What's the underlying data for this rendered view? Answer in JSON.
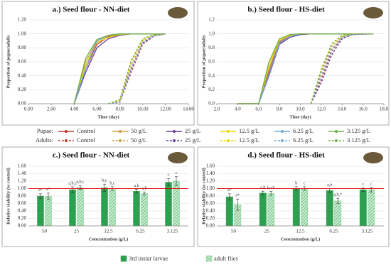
{
  "chart_data": [
    {
      "type": "line",
      "title": "a.) Seed flour - NN-diet",
      "xlabel": "Time (day)",
      "ylabel": "Proportion of pupae/adults",
      "x": [
        4,
        5,
        6,
        7,
        8,
        9,
        10,
        11,
        12
      ],
      "xlim": [
        0,
        14
      ],
      "xticks": [
        {
          "value": 0,
          "label": "0.00"
        },
        {
          "value": 2,
          "label": "2.00"
        },
        {
          "value": 4,
          "label": "4.00"
        },
        {
          "value": 6,
          "label": "6.00"
        },
        {
          "value": 8,
          "label": "8.00"
        },
        {
          "value": 10,
          "label": "10.00"
        },
        {
          "value": 12,
          "label": "12.00"
        },
        {
          "value": 14,
          "label": "14.00"
        }
      ],
      "ylim": [
        0,
        1.2
      ],
      "yticks": [
        {
          "value": 0,
          "label": "0.00"
        },
        {
          "value": 0.2,
          "label": "0.20"
        },
        {
          "value": 0.4,
          "label": "0.40"
        },
        {
          "value": 0.6,
          "label": "0.60"
        },
        {
          "value": 0.8,
          "label": "0.80"
        },
        {
          "value": 1,
          "label": "1.00"
        },
        {
          "value": 1.2,
          "label": "1.20"
        }
      ],
      "series": [
        {
          "name": "Control",
          "color": "#c0392b",
          "values": [
            0,
            0.5,
            0.85,
            0.96,
            0.99,
            1,
            1,
            1,
            1
          ]
        },
        {
          "name": "50 g/L",
          "color": "#c8a040",
          "values": [
            0,
            0.6,
            0.9,
            0.97,
            1,
            1,
            1,
            1,
            1
          ]
        },
        {
          "name": "25 g/L",
          "color": "#6a3d9a",
          "values": [
            0,
            0.45,
            0.8,
            0.93,
            0.98,
            1,
            1,
            1,
            1
          ]
        },
        {
          "name": "12.5 g/L",
          "color": "#e6d800",
          "values": [
            0,
            0.55,
            0.88,
            0.95,
            0.99,
            1,
            1,
            1,
            1
          ]
        },
        {
          "name": "6.25 g/L",
          "color": "#6fa8dc",
          "values": [
            0,
            0.5,
            0.9,
            0.98,
            1,
            1,
            1,
            1,
            1
          ]
        },
        {
          "name": "3.125 g/L",
          "color": "#70ad47",
          "values": [
            0,
            0.65,
            0.92,
            0.98,
            1,
            1,
            1,
            1,
            1
          ]
        },
        {
          "name": "Control",
          "color": "#c0392b",
          "dash": true,
          "values": [
            null,
            null,
            null,
            0,
            0.02,
            0.45,
            0.85,
            0.97,
            1
          ]
        },
        {
          "name": "50 g/L",
          "color": "#c8a040",
          "dash": true,
          "values": [
            null,
            null,
            null,
            0,
            0.05,
            0.55,
            0.9,
            0.98,
            1
          ]
        },
        {
          "name": "25 g/L",
          "color": "#6a3d9a",
          "dash": true,
          "values": [
            null,
            null,
            null,
            0,
            0.03,
            0.5,
            0.87,
            0.97,
            1
          ]
        },
        {
          "name": "12.5 g/L",
          "color": "#e6d800",
          "dash": true,
          "values": [
            null,
            null,
            null,
            0,
            0.04,
            0.6,
            0.92,
            0.99,
            1
          ]
        },
        {
          "name": "6.25 g/L",
          "color": "#6fa8dc",
          "dash": true,
          "values": [
            null,
            null,
            null,
            0,
            0.02,
            0.48,
            0.88,
            0.97,
            1
          ]
        },
        {
          "name": "3.125 g/L",
          "color": "#70ad47",
          "dash": true,
          "values": [
            null,
            null,
            null,
            0,
            0.06,
            0.62,
            0.93,
            0.99,
            1
          ]
        }
      ]
    },
    {
      "type": "line",
      "title": "b.) Seed flour - HS-diet",
      "xlabel": "Time (day)",
      "ylabel": "Proportion of pupae/adults",
      "x": [
        4,
        6,
        7,
        8,
        9,
        10,
        11,
        12,
        13,
        14,
        15,
        17
      ],
      "xlim": [
        2,
        18
      ],
      "xticks": [
        {
          "value": 2,
          "label": "2.0"
        },
        {
          "value": 4,
          "label": "4.0"
        },
        {
          "value": 6,
          "label": "6.0"
        },
        {
          "value": 8,
          "label": "8.0"
        },
        {
          "value": 10,
          "label": "10.0"
        },
        {
          "value": 12,
          "label": "12.0"
        },
        {
          "value": 14,
          "label": "14.0"
        },
        {
          "value": 16,
          "label": "16.0"
        },
        {
          "value": 18,
          "label": "18.0"
        }
      ],
      "ylim": [
        0,
        1.2
      ],
      "yticks": [
        {
          "value": 0,
          "label": "0.0"
        },
        {
          "value": 0.2,
          "label": "0.2"
        },
        {
          "value": 0.4,
          "label": "0.4"
        },
        {
          "value": 0.6,
          "label": "0.6"
        },
        {
          "value": 0.8,
          "label": "0.8"
        },
        {
          "value": 1,
          "label": "1.0"
        },
        {
          "value": 1.2,
          "label": "1.2"
        }
      ],
      "series": [
        {
          "color": "#c0392b",
          "values": [
            0,
            0,
            0.45,
            0.88,
            0.96,
            0.99,
            1,
            1,
            1,
            1,
            1,
            1
          ]
        },
        {
          "color": "#c8a040",
          "values": [
            0,
            0,
            0.5,
            0.9,
            0.97,
            1,
            1,
            1,
            1,
            1,
            1,
            1
          ]
        },
        {
          "color": "#6a3d9a",
          "values": [
            0,
            0,
            0.4,
            0.85,
            0.95,
            0.99,
            1,
            1,
            1,
            1,
            1,
            1
          ]
        },
        {
          "color": "#e6d800",
          "values": [
            0,
            0,
            0.55,
            0.92,
            0.98,
            1,
            1,
            1,
            1,
            1,
            1,
            1
          ]
        },
        {
          "color": "#6fa8dc",
          "values": [
            0,
            0,
            0.42,
            0.87,
            0.96,
            1,
            1,
            1,
            1,
            1,
            1,
            1
          ]
        },
        {
          "color": "#70ad47",
          "values": [
            0,
            0,
            0.6,
            0.93,
            0.99,
            1,
            1,
            1,
            1,
            1,
            1,
            1
          ]
        },
        {
          "color": "#c0392b",
          "dash": true,
          "values": [
            null,
            null,
            null,
            null,
            null,
            null,
            0,
            0.35,
            0.75,
            0.95,
            0.99,
            1
          ]
        },
        {
          "color": "#c8a040",
          "dash": true,
          "values": [
            null,
            null,
            null,
            null,
            null,
            null,
            0,
            0.45,
            0.82,
            0.96,
            1,
            1
          ]
        },
        {
          "color": "#6a3d9a",
          "dash": true,
          "values": [
            null,
            null,
            null,
            null,
            null,
            null,
            0,
            0.3,
            0.7,
            0.93,
            0.99,
            1
          ]
        },
        {
          "color": "#e6d800",
          "dash": true,
          "values": [
            null,
            null,
            null,
            null,
            null,
            null,
            0,
            0.5,
            0.85,
            0.97,
            1,
            1
          ]
        },
        {
          "color": "#6fa8dc",
          "dash": true,
          "values": [
            null,
            null,
            null,
            null,
            null,
            null,
            0,
            0.4,
            0.78,
            0.95,
            0.99,
            1
          ]
        },
        {
          "color": "#70ad47",
          "dash": true,
          "values": [
            null,
            null,
            null,
            null,
            null,
            null,
            0,
            0.48,
            0.86,
            0.98,
            1,
            1
          ]
        }
      ]
    },
    {
      "type": "bar",
      "title": "c.) Seed flour - NN-diet",
      "xlabel": "Concentration (g/L)",
      "ylabel": "Relative viability (to control)",
      "categories": [
        "50",
        "25",
        "12.5",
        "6.25",
        "3.125"
      ],
      "ylim": [
        0,
        1.6
      ],
      "refline": 1,
      "yticks": [
        {
          "value": 0,
          "label": "0.00"
        },
        {
          "value": 0.2,
          "label": "0.20"
        },
        {
          "value": 0.4,
          "label": "0.40"
        },
        {
          "value": 0.6,
          "label": "0.60"
        },
        {
          "value": 0.8,
          "label": "0.80"
        },
        {
          "value": 1,
          "label": "1.00"
        },
        {
          "value": 1.2,
          "label": "1.20"
        },
        {
          "value": 1.4,
          "label": "1.40"
        },
        {
          "value": 1.6,
          "label": "1.60"
        }
      ],
      "series": [
        {
          "name": "3rd instar larvae",
          "color": "#2e9e4f",
          "values": [
            0.8,
            0.97,
            1.02,
            0.93,
            1.17
          ],
          "errors": [
            0.06,
            0.08,
            0.1,
            0.05,
            0.1
          ],
          "letters": [
            "a*",
            "a,b,c",
            "b,c",
            "a,b",
            "c"
          ]
        },
        {
          "name": "adult flies",
          "color": "#7fcf8f",
          "hatch": true,
          "values": [
            0.8,
            1.03,
            1.0,
            0.87,
            1.2
          ],
          "errors": [
            0.08,
            0.05,
            0.05,
            0.04,
            0.12
          ],
          "letters": [
            "a*",
            "a,b,c",
            "b,c",
            "a,b",
            "c"
          ]
        }
      ]
    },
    {
      "type": "bar",
      "title": "d.) Seed flour - HS-diet",
      "xlabel": "Concentration (g/L)",
      "ylabel": "Relative viability (to control)",
      "categories": [
        "50",
        "25",
        "12.5",
        "6.25",
        "3.125"
      ],
      "ylim": [
        0,
        1.6
      ],
      "refline": 1,
      "yticks": [
        {
          "value": 0,
          "label": "0.00"
        },
        {
          "value": 0.2,
          "label": "0.20"
        },
        {
          "value": 0.4,
          "label": "0.40"
        },
        {
          "value": 0.6,
          "label": "0.60"
        },
        {
          "value": 0.8,
          "label": "0.80"
        },
        {
          "value": 1,
          "label": "1.00"
        },
        {
          "value": 1.2,
          "label": "1.20"
        },
        {
          "value": 1.4,
          "label": "1.40"
        },
        {
          "value": 1.6,
          "label": "1.60"
        }
      ],
      "series": [
        {
          "color": "#2e9e4f",
          "values": [
            0.78,
            0.88,
            1.0,
            0.95,
            0.97
          ],
          "errors": [
            0.08,
            0.05,
            0.05,
            0.05,
            0.05
          ],
          "letters": [
            "a*",
            "a,b",
            "b",
            "a,b",
            "c"
          ]
        },
        {
          "color": "#7fcf8f",
          "hatch": true,
          "values": [
            0.57,
            0.87,
            1.0,
            0.67,
            0.97
          ],
          "errors": [
            0.15,
            0.05,
            0.05,
            0.07,
            0.06
          ],
          "letters": [
            "a*",
            "b,c*",
            "c",
            "a,b,*",
            "c"
          ]
        }
      ]
    }
  ],
  "legend_labels": [
    "Pupae:",
    "Adults:"
  ]
}
